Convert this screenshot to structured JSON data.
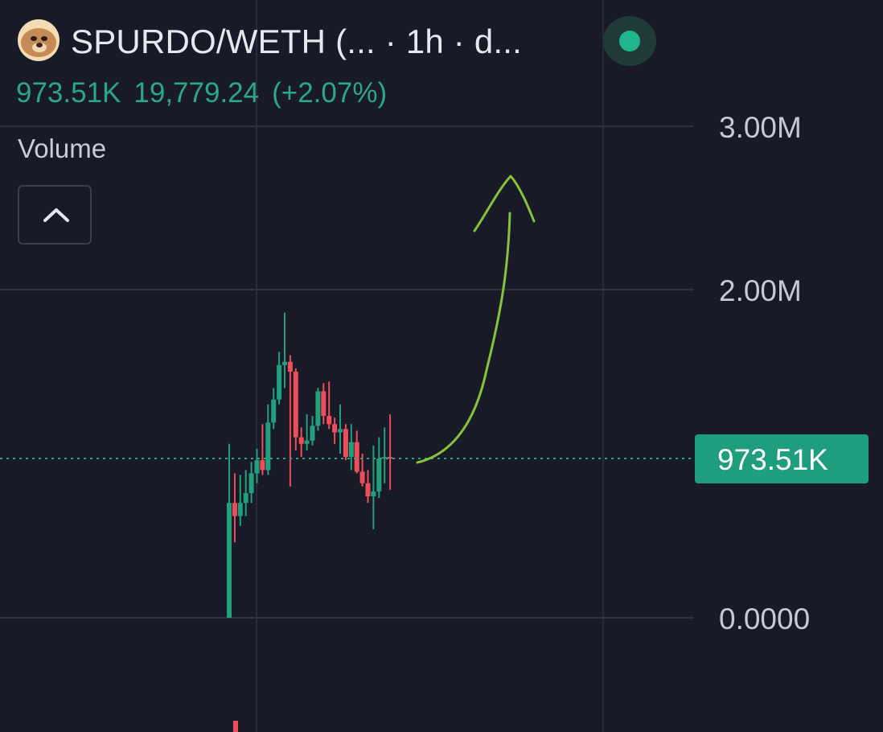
{
  "header": {
    "title": "SPURDO/WETH (...  · 1h · d...",
    "avatar_icon": "spurdo-avatar-icon",
    "status_color": "#1fb58e"
  },
  "price": {
    "current": "973.51K",
    "change_value": "19,779.24",
    "change_percent": "(+2.07%)"
  },
  "indicator": {
    "label": "Volume",
    "collapse_icon": "chevron-up-icon"
  },
  "colors": {
    "up": "#22a07e",
    "down": "#ef4d5a",
    "annotation": "#86c23a",
    "price_tag": "#1f9e7f"
  },
  "chart_data": {
    "type": "candlestick",
    "y_axis": {
      "ticks": [
        "3.00M",
        "2.00M",
        "0.0000"
      ],
      "tick_values": [
        3000000,
        2000000,
        0
      ],
      "ylim": [
        -700000,
        3000000
      ]
    },
    "last_price_label": "973.51K",
    "last_price_value": 973510,
    "candles": [
      {
        "o": 0,
        "h": 1060000,
        "l": 0,
        "c": 700000
      },
      {
        "o": 700000,
        "h": 880000,
        "l": 460000,
        "c": 620000
      },
      {
        "o": 620000,
        "h": 870000,
        "l": 560000,
        "c": 700000
      },
      {
        "o": 700000,
        "h": 900000,
        "l": 620000,
        "c": 760000
      },
      {
        "o": 760000,
        "h": 950000,
        "l": 700000,
        "c": 880000
      },
      {
        "o": 880000,
        "h": 1030000,
        "l": 820000,
        "c": 960000
      },
      {
        "o": 960000,
        "h": 1180000,
        "l": 870000,
        "c": 900000
      },
      {
        "o": 900000,
        "h": 1300000,
        "l": 870000,
        "c": 1190000
      },
      {
        "o": 1190000,
        "h": 1400000,
        "l": 1150000,
        "c": 1330000
      },
      {
        "o": 1330000,
        "h": 1620000,
        "l": 1300000,
        "c": 1540000
      },
      {
        "o": 1540000,
        "h": 1860000,
        "l": 1400000,
        "c": 1560000
      },
      {
        "o": 1560000,
        "h": 1600000,
        "l": 800000,
        "c": 1500000
      },
      {
        "o": 1500000,
        "h": 1520000,
        "l": 1020000,
        "c": 1100000
      },
      {
        "o": 1100000,
        "h": 1160000,
        "l": 980000,
        "c": 1060000
      },
      {
        "o": 1060000,
        "h": 1240000,
        "l": 1020000,
        "c": 1080000
      },
      {
        "o": 1080000,
        "h": 1230000,
        "l": 1050000,
        "c": 1170000
      },
      {
        "o": 1170000,
        "h": 1400000,
        "l": 1140000,
        "c": 1380000
      },
      {
        "o": 1380000,
        "h": 1430000,
        "l": 1180000,
        "c": 1230000
      },
      {
        "o": 1230000,
        "h": 1440000,
        "l": 1150000,
        "c": 1180000
      },
      {
        "o": 1180000,
        "h": 1220000,
        "l": 1060000,
        "c": 1130000
      },
      {
        "o": 1130000,
        "h": 1300000,
        "l": 1000000,
        "c": 1150000
      },
      {
        "o": 1150000,
        "h": 1180000,
        "l": 960000,
        "c": 980000
      },
      {
        "o": 980000,
        "h": 1180000,
        "l": 900000,
        "c": 1070000
      },
      {
        "o": 1070000,
        "h": 1140000,
        "l": 880000,
        "c": 890000
      },
      {
        "o": 890000,
        "h": 1000000,
        "l": 800000,
        "c": 820000
      },
      {
        "o": 820000,
        "h": 900000,
        "l": 700000,
        "c": 740000
      },
      {
        "o": 740000,
        "h": 1050000,
        "l": 540000,
        "c": 770000
      },
      {
        "o": 770000,
        "h": 1100000,
        "l": 730000,
        "c": 970000
      },
      {
        "o": 970000,
        "h": 1160000,
        "l": 820000,
        "c": 980000
      },
      {
        "o": 980000,
        "h": 1240000,
        "l": 780000,
        "c": 975000
      }
    ]
  }
}
